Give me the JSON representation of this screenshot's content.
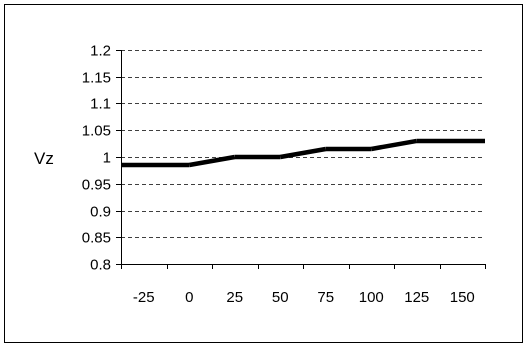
{
  "chart_data": {
    "type": "line",
    "title": "",
    "xlabel": "",
    "ylabel": "Vz",
    "x": [
      -25,
      0,
      25,
      50,
      75,
      100,
      125,
      150
    ],
    "x_tick_labels": [
      "-25",
      "0",
      "25",
      "50",
      "75",
      "100",
      "125",
      "150"
    ],
    "y_tick_labels": [
      "0.8",
      "0.85",
      "0.9",
      "0.95",
      "1",
      "1.05",
      "1.1",
      "1.15",
      "1.2"
    ],
    "y_ticks": [
      0.8,
      0.85,
      0.9,
      0.95,
      1,
      1.05,
      1.1,
      1.15,
      1.2
    ],
    "ylim": [
      0.8,
      1.2
    ],
    "series": [
      {
        "values": [
          0.985,
          0.985,
          1.0,
          1.0,
          1.015,
          1.015,
          1.03,
          1.03
        ],
        "color": "#000000"
      }
    ],
    "grid": "horizontal-dashed",
    "legend": "none"
  }
}
